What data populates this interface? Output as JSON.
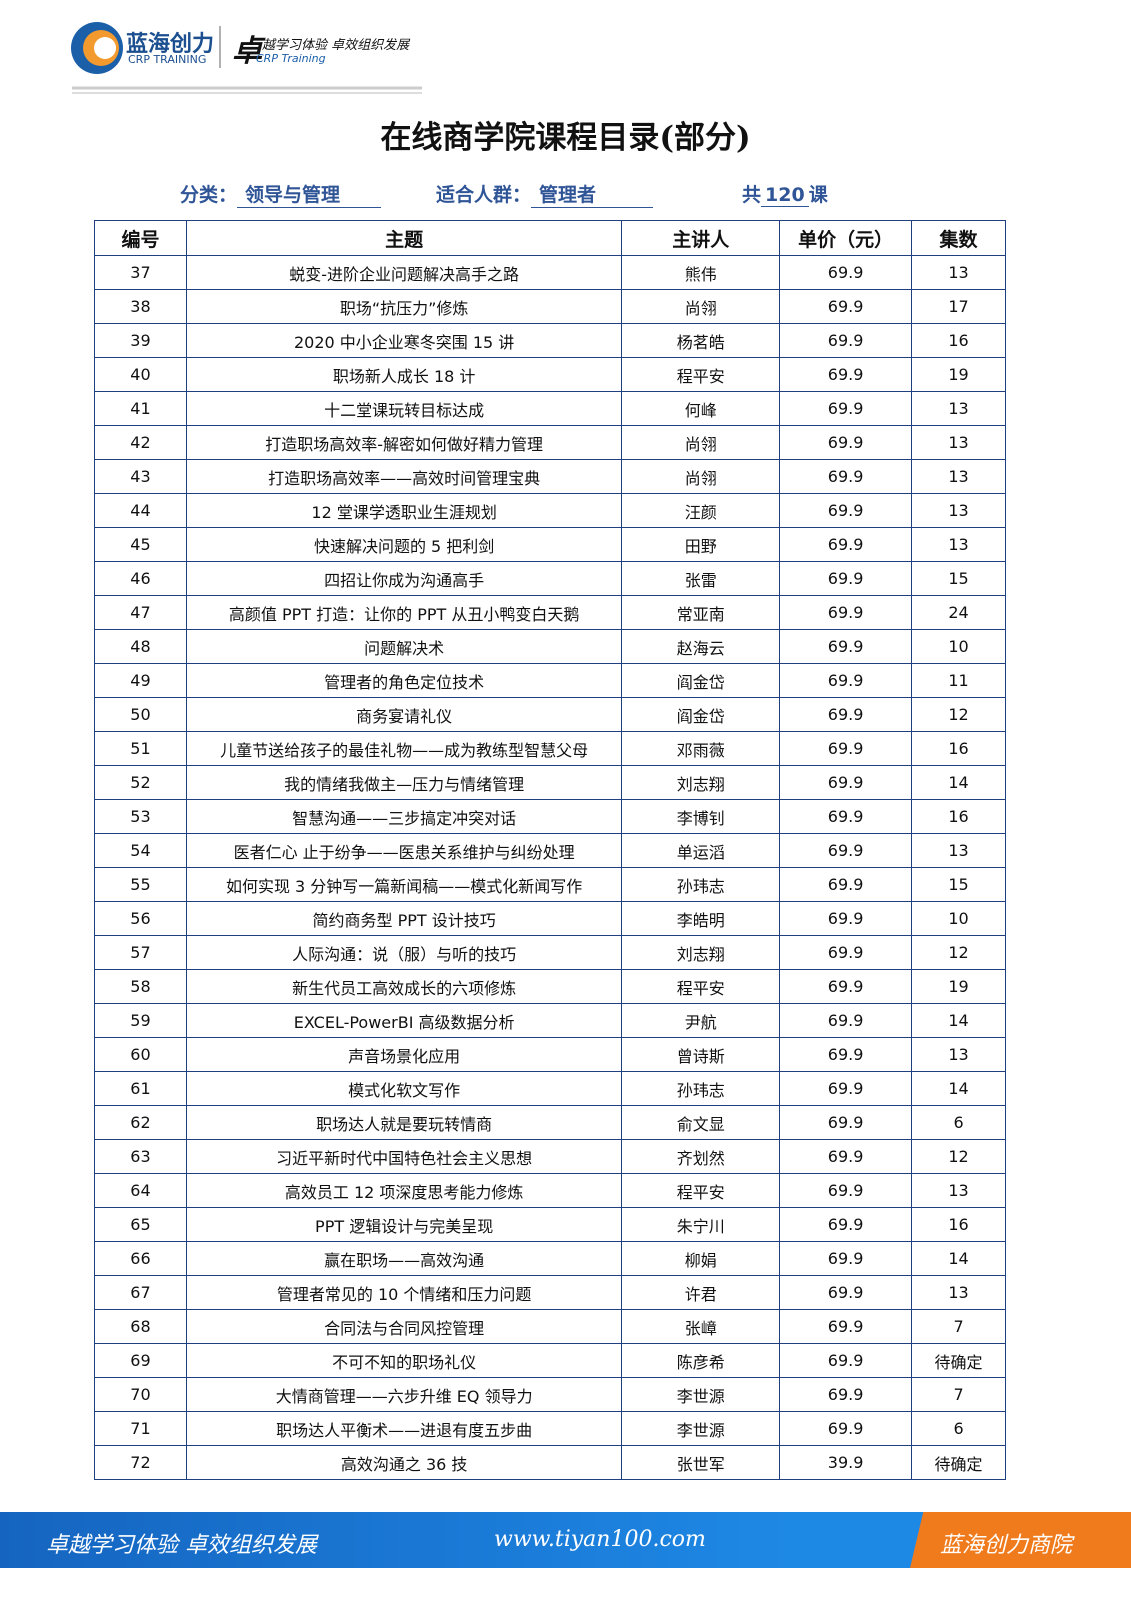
{
  "header": {
    "brand": "蓝海创力",
    "brand_en": "CRP TRAINING",
    "slogan_mark": "卓",
    "slogan": "越学习体验 卓效组织发展",
    "slogan_en": "CRP Training"
  },
  "title": "在线商学院课程目录(部分)",
  "meta": {
    "category_label": "分类：",
    "category": "领导与管理",
    "audience_label": "适合人群：",
    "audience": "管理者",
    "total_prefix": "共",
    "total": "120",
    "total_suffix": "课"
  },
  "table": {
    "columns": [
      "编号",
      "主题",
      "主讲人",
      "单价（元）",
      "集数"
    ],
    "rows": [
      [
        "37",
        "蜕变-进阶企业问题解决高手之路",
        "熊伟",
        "69.9",
        "13"
      ],
      [
        "38",
        "职场“抗压力”修炼",
        "尚翎",
        "69.9",
        "17"
      ],
      [
        "39",
        "2020 中小企业寒冬突围 15 讲",
        "杨茗皓",
        "69.9",
        "16"
      ],
      [
        "40",
        "职场新人成长 18 计",
        "程平安",
        "69.9",
        "19"
      ],
      [
        "41",
        "十二堂课玩转目标达成",
        "何峰",
        "69.9",
        "13"
      ],
      [
        "42",
        "打造职场高效率-解密如何做好精力管理",
        "尚翎",
        "69.9",
        "13"
      ],
      [
        "43",
        "打造职场高效率——高效时间管理宝典",
        "尚翎",
        "69.9",
        "13"
      ],
      [
        "44",
        "12 堂课学透职业生涯规划",
        "汪颜",
        "69.9",
        "13"
      ],
      [
        "45",
        "快速解决问题的 5 把利剑",
        "田野",
        "69.9",
        "13"
      ],
      [
        "46",
        "四招让你成为沟通高手",
        "张雷",
        "69.9",
        "15"
      ],
      [
        "47",
        "高颜值 PPT 打造：让你的 PPT 从丑小鸭变白天鹅",
        "常亚南",
        "69.9",
        "24"
      ],
      [
        "48",
        "问题解决术",
        "赵海云",
        "69.9",
        "10"
      ],
      [
        "49",
        "管理者的角色定位技术",
        "阎金岱",
        "69.9",
        "11"
      ],
      [
        "50",
        "商务宴请礼仪",
        "阎金岱",
        "69.9",
        "12"
      ],
      [
        "51",
        "儿童节送给孩子的最佳礼物——成为教练型智慧父母",
        "邓雨薇",
        "69.9",
        "16"
      ],
      [
        "52",
        "我的情绪我做主—压力与情绪管理",
        "刘志翔",
        "69.9",
        "14"
      ],
      [
        "53",
        "智慧沟通——三步搞定冲突对话",
        "李博钊",
        "69.9",
        "16"
      ],
      [
        "54",
        "医者仁心  止于纷争——医患关系维护与纠纷处理",
        "单运滔",
        "69.9",
        "13"
      ],
      [
        "55",
        "如何实现 3 分钟写一篇新闻稿——模式化新闻写作",
        "孙玮志",
        "69.9",
        "15"
      ],
      [
        "56",
        "简约商务型 PPT 设计技巧",
        "李皓明",
        "69.9",
        "10"
      ],
      [
        "57",
        "人际沟通：说（服）与听的技巧",
        "刘志翔",
        "69.9",
        "12"
      ],
      [
        "58",
        "新生代员工高效成长的六项修炼",
        "程平安",
        "69.9",
        "19"
      ],
      [
        "59",
        "EXCEL-PowerBI 高级数据分析",
        "尹航",
        "69.9",
        "14"
      ],
      [
        "60",
        "声音场景化应用",
        "曾诗斯",
        "69.9",
        "13"
      ],
      [
        "61",
        "模式化软文写作",
        "孙玮志",
        "69.9",
        "14"
      ],
      [
        "62",
        "职场达人就是要玩转情商",
        "俞文显",
        "69.9",
        "6"
      ],
      [
        "63",
        "习近平新时代中国特色社会主义思想",
        "齐划然",
        "69.9",
        "12"
      ],
      [
        "64",
        "高效员工 12 项深度思考能力修炼",
        "程平安",
        "69.9",
        "13"
      ],
      [
        "65",
        "PPT 逻辑设计与完美呈现",
        "朱宁川",
        "69.9",
        "16"
      ],
      [
        "66",
        "赢在职场——高效沟通",
        "柳娟",
        "69.9",
        "14"
      ],
      [
        "67",
        "管理者常见的 10 个情绪和压力问题",
        "许君",
        "69.9",
        "13"
      ],
      [
        "68",
        "合同法与合同风控管理",
        "张嶂",
        "69.9",
        "7"
      ],
      [
        "69",
        "不可不知的职场礼仪",
        "陈彦希",
        "69.9",
        "待确定"
      ],
      [
        "70",
        "大情商管理——六步升维 EQ 领导力",
        "李世源",
        "69.9",
        "7"
      ],
      [
        "71",
        "职场达人平衡术——进退有度五步曲",
        "李世源",
        "69.9",
        "6"
      ],
      [
        "72",
        "高效沟通之 36 技",
        "张世军",
        "39.9",
        "待确定"
      ]
    ]
  },
  "footer": {
    "slogan": "卓越学习体验  卓效组织发展",
    "url": "www.tiyan100.com",
    "brand": "蓝海创力商院"
  }
}
